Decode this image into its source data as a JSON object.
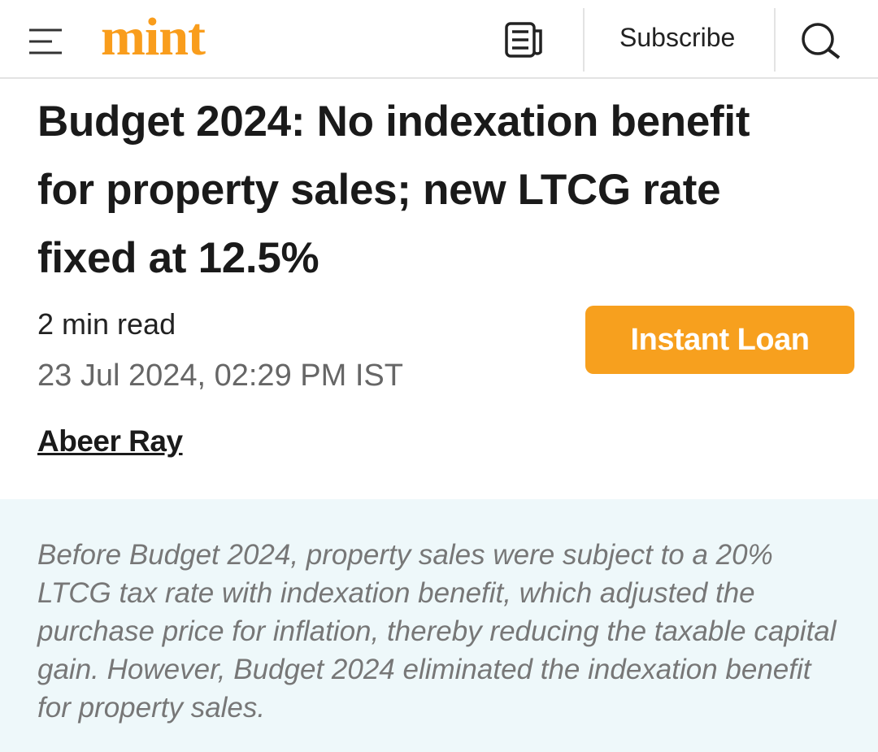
{
  "header": {
    "logo": "mint",
    "subscribe": "Subscribe"
  },
  "article": {
    "title": "Budget 2024: No indexation benefit for property sales; new LTCG rate fixed at 12.5%",
    "read_time": "2 min read",
    "date": "23 Jul 2024, 02:29 PM IST",
    "author": "Abeer Ray",
    "cta": "Instant Loan",
    "summary": "Before Budget 2024, property sales were subject to a 20% LTCG tax rate with indexation benefit, which adjusted the purchase price for inflation, thereby reducing the taxable capital gain. However, Budget 2024 eliminated the indexation benefit for property sales."
  }
}
